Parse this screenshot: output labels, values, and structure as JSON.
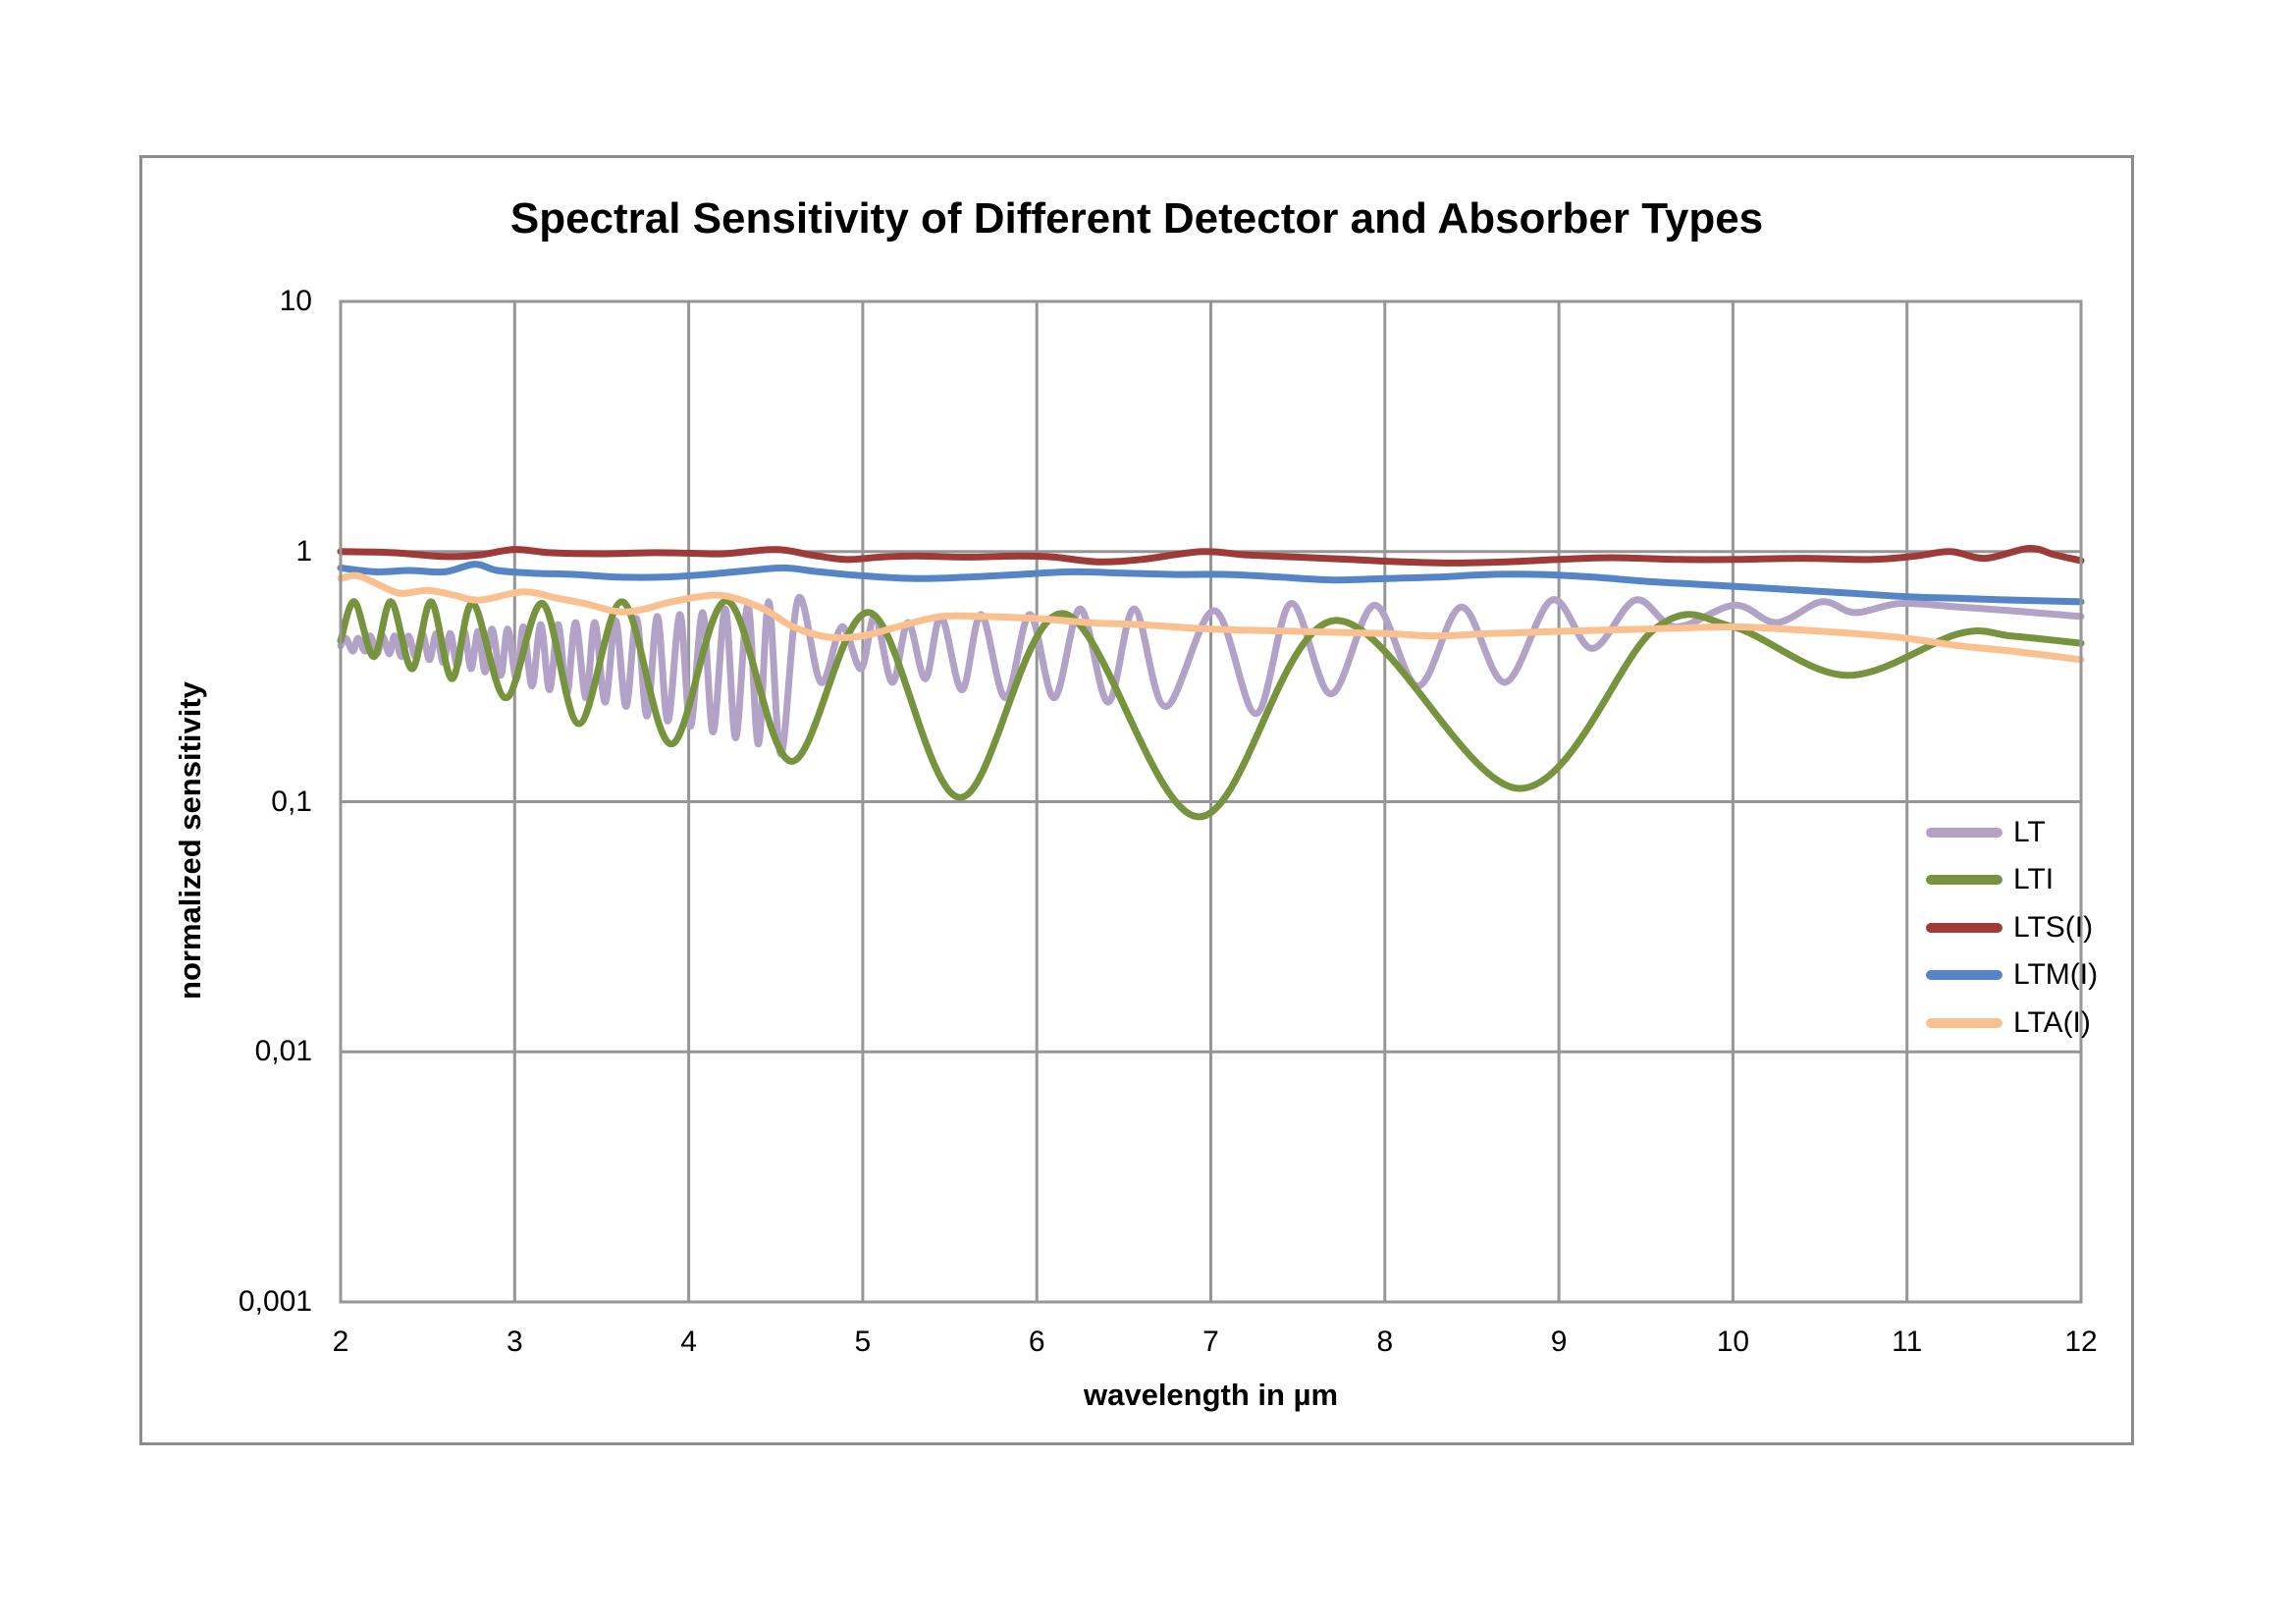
{
  "chart_data": {
    "type": "line",
    "title": "Spectral Sensitivity of Different Detector and Absorber Types",
    "xlabel": "wavelength in µm",
    "ylabel": "normalized sensitivity",
    "x_range": [
      2,
      12
    ],
    "y_scale": "log",
    "y_range": [
      0.001,
      10
    ],
    "grid": true,
    "grid_color": "#969696",
    "border_color": "#8c8c8c",
    "legend_position": "inside-right",
    "x_ticks": [
      {
        "label": "2",
        "value": 2
      },
      {
        "label": "3",
        "value": 3
      },
      {
        "label": "4",
        "value": 4
      },
      {
        "label": "5",
        "value": 5
      },
      {
        "label": "6",
        "value": 6
      },
      {
        "label": "7",
        "value": 7
      },
      {
        "label": "8",
        "value": 8
      },
      {
        "label": "9",
        "value": 9
      },
      {
        "label": "10",
        "value": 10
      },
      {
        "label": "11",
        "value": 11
      },
      {
        "label": "12",
        "value": 12
      }
    ],
    "y_ticks": [
      {
        "label": "10",
        "value": 10
      },
      {
        "label": "1",
        "value": 1
      },
      {
        "label": "0,1",
        "value": 0.1
      },
      {
        "label": "0,01",
        "value": 0.01
      },
      {
        "label": "0,001",
        "value": 0.001
      }
    ],
    "series": [
      {
        "name": "LT",
        "color": "#b3a2c8",
        "points": [
          [
            2.0,
            0.42
          ],
          [
            2.03,
            0.45
          ],
          [
            2.07,
            0.4
          ],
          [
            2.1,
            0.45
          ],
          [
            2.14,
            0.4
          ],
          [
            2.17,
            0.46
          ],
          [
            2.21,
            0.39
          ],
          [
            2.24,
            0.46
          ],
          [
            2.28,
            0.39
          ],
          [
            2.31,
            0.46
          ],
          [
            2.35,
            0.38
          ],
          [
            2.39,
            0.46
          ],
          [
            2.43,
            0.38
          ],
          [
            2.47,
            0.47
          ],
          [
            2.51,
            0.37
          ],
          [
            2.55,
            0.47
          ],
          [
            2.59,
            0.36
          ],
          [
            2.63,
            0.47
          ],
          [
            2.67,
            0.35
          ],
          [
            2.71,
            0.48
          ],
          [
            2.75,
            0.34
          ],
          [
            2.79,
            0.48
          ],
          [
            2.83,
            0.33
          ],
          [
            2.87,
            0.49
          ],
          [
            2.92,
            0.32
          ],
          [
            2.96,
            0.49
          ],
          [
            3.01,
            0.31
          ],
          [
            3.05,
            0.5
          ],
          [
            3.1,
            0.29
          ],
          [
            3.15,
            0.51
          ],
          [
            3.2,
            0.28
          ],
          [
            3.25,
            0.51
          ],
          [
            3.3,
            0.27
          ],
          [
            3.35,
            0.52
          ],
          [
            3.41,
            0.26
          ],
          [
            3.46,
            0.52
          ],
          [
            3.52,
            0.25
          ],
          [
            3.58,
            0.53
          ],
          [
            3.64,
            0.24
          ],
          [
            3.7,
            0.54
          ],
          [
            3.76,
            0.22
          ],
          [
            3.82,
            0.55
          ],
          [
            3.88,
            0.21
          ],
          [
            3.95,
            0.56
          ],
          [
            4.01,
            0.2
          ],
          [
            4.08,
            0.57
          ],
          [
            4.14,
            0.19
          ],
          [
            4.21,
            0.59
          ],
          [
            4.27,
            0.18
          ],
          [
            4.34,
            0.61
          ],
          [
            4.4,
            0.17
          ],
          [
            4.46,
            0.63
          ],
          [
            4.53,
            0.155
          ],
          [
            4.63,
            0.65
          ],
          [
            4.76,
            0.3
          ],
          [
            4.88,
            0.5
          ],
          [
            4.99,
            0.34
          ],
          [
            5.07,
            0.55
          ],
          [
            5.17,
            0.3
          ],
          [
            5.26,
            0.52
          ],
          [
            5.36,
            0.31
          ],
          [
            5.45,
            0.55
          ],
          [
            5.57,
            0.28
          ],
          [
            5.68,
            0.56
          ],
          [
            5.82,
            0.26
          ],
          [
            5.96,
            0.56
          ],
          [
            6.1,
            0.26
          ],
          [
            6.25,
            0.59
          ],
          [
            6.41,
            0.25
          ],
          [
            6.56,
            0.59
          ],
          [
            6.74,
            0.24
          ],
          [
            7.02,
            0.58
          ],
          [
            7.26,
            0.225
          ],
          [
            7.46,
            0.62
          ],
          [
            7.69,
            0.27
          ],
          [
            7.94,
            0.61
          ],
          [
            8.19,
            0.29
          ],
          [
            8.44,
            0.6
          ],
          [
            8.69,
            0.3
          ],
          [
            8.96,
            0.64
          ],
          [
            9.19,
            0.41
          ],
          [
            9.44,
            0.64
          ],
          [
            9.67,
            0.5
          ],
          [
            10.01,
            0.61
          ],
          [
            10.25,
            0.52
          ],
          [
            10.51,
            0.63
          ],
          [
            10.7,
            0.57
          ],
          [
            10.96,
            0.62
          ],
          [
            11.3,
            0.6
          ],
          [
            11.6,
            0.58
          ],
          [
            12.0,
            0.55
          ]
        ]
      },
      {
        "name": "LTI",
        "color": "#78933d",
        "points": [
          [
            2.0,
            0.44
          ],
          [
            2.08,
            0.63
          ],
          [
            2.19,
            0.38
          ],
          [
            2.29,
            0.63
          ],
          [
            2.41,
            0.34
          ],
          [
            2.52,
            0.63
          ],
          [
            2.64,
            0.31
          ],
          [
            2.76,
            0.62
          ],
          [
            2.95,
            0.26
          ],
          [
            3.16,
            0.62
          ],
          [
            3.37,
            0.205
          ],
          [
            3.62,
            0.63
          ],
          [
            3.9,
            0.17
          ],
          [
            4.22,
            0.635
          ],
          [
            4.59,
            0.145
          ],
          [
            5.04,
            0.57
          ],
          [
            5.56,
            0.104
          ],
          [
            6.15,
            0.565
          ],
          [
            6.93,
            0.087
          ],
          [
            7.71,
            0.53
          ],
          [
            8.77,
            0.113
          ],
          [
            9.55,
            0.49
          ],
          [
            10.0,
            0.5
          ],
          [
            10.65,
            0.32
          ],
          [
            11.3,
            0.47
          ],
          [
            11.6,
            0.46
          ],
          [
            12.0,
            0.43
          ]
        ]
      },
      {
        "name": "LTS(I)",
        "color": "#9e3b38",
        "points": [
          [
            2.0,
            1.0
          ],
          [
            2.3,
            0.99
          ],
          [
            2.6,
            0.955
          ],
          [
            2.8,
            0.97
          ],
          [
            3.0,
            1.02
          ],
          [
            3.2,
            0.99
          ],
          [
            3.5,
            0.98
          ],
          [
            3.8,
            0.99
          ],
          [
            4.0,
            0.985
          ],
          [
            4.2,
            0.98
          ],
          [
            4.5,
            1.02
          ],
          [
            4.7,
            0.97
          ],
          [
            4.9,
            0.93
          ],
          [
            5.1,
            0.95
          ],
          [
            5.3,
            0.96
          ],
          [
            5.6,
            0.95
          ],
          [
            5.9,
            0.96
          ],
          [
            6.1,
            0.95
          ],
          [
            6.35,
            0.91
          ],
          [
            6.6,
            0.93
          ],
          [
            6.95,
            1.0
          ],
          [
            7.2,
            0.97
          ],
          [
            7.5,
            0.95
          ],
          [
            7.8,
            0.93
          ],
          [
            8.1,
            0.91
          ],
          [
            8.4,
            0.9
          ],
          [
            8.7,
            0.91
          ],
          [
            9.0,
            0.93
          ],
          [
            9.3,
            0.945
          ],
          [
            9.7,
            0.93
          ],
          [
            10.0,
            0.93
          ],
          [
            10.4,
            0.94
          ],
          [
            10.8,
            0.93
          ],
          [
            11.05,
            0.96
          ],
          [
            11.25,
            1.0
          ],
          [
            11.45,
            0.94
          ],
          [
            11.7,
            1.03
          ],
          [
            11.85,
            0.97
          ],
          [
            12.0,
            0.92
          ]
        ]
      },
      {
        "name": "LTM(I)",
        "color": "#5585c6",
        "points": [
          [
            2.0,
            0.86
          ],
          [
            2.2,
            0.83
          ],
          [
            2.4,
            0.84
          ],
          [
            2.6,
            0.83
          ],
          [
            2.77,
            0.89
          ],
          [
            2.9,
            0.84
          ],
          [
            3.1,
            0.82
          ],
          [
            3.35,
            0.81
          ],
          [
            3.6,
            0.79
          ],
          [
            3.85,
            0.79
          ],
          [
            4.1,
            0.81
          ],
          [
            4.35,
            0.84
          ],
          [
            4.55,
            0.86
          ],
          [
            4.75,
            0.83
          ],
          [
            5.0,
            0.8
          ],
          [
            5.3,
            0.78
          ],
          [
            5.6,
            0.79
          ],
          [
            5.9,
            0.81
          ],
          [
            6.2,
            0.83
          ],
          [
            6.5,
            0.82
          ],
          [
            6.8,
            0.81
          ],
          [
            7.1,
            0.81
          ],
          [
            7.4,
            0.79
          ],
          [
            7.7,
            0.77
          ],
          [
            8.0,
            0.78
          ],
          [
            8.3,
            0.79
          ],
          [
            8.6,
            0.81
          ],
          [
            8.9,
            0.81
          ],
          [
            9.2,
            0.79
          ],
          [
            9.5,
            0.76
          ],
          [
            9.8,
            0.74
          ],
          [
            10.1,
            0.72
          ],
          [
            10.4,
            0.7
          ],
          [
            10.7,
            0.68
          ],
          [
            11.0,
            0.66
          ],
          [
            11.3,
            0.65
          ],
          [
            11.6,
            0.64
          ],
          [
            12.0,
            0.63
          ]
        ]
      },
      {
        "name": "LTA(I)",
        "color": "#fac090",
        "points": [
          [
            2.0,
            0.78
          ],
          [
            2.1,
            0.8
          ],
          [
            2.25,
            0.72
          ],
          [
            2.35,
            0.68
          ],
          [
            2.5,
            0.7
          ],
          [
            2.65,
            0.67
          ],
          [
            2.8,
            0.64
          ],
          [
            3.05,
            0.69
          ],
          [
            3.25,
            0.65
          ],
          [
            3.4,
            0.62
          ],
          [
            3.6,
            0.575
          ],
          [
            3.75,
            0.59
          ],
          [
            3.9,
            0.63
          ],
          [
            4.15,
            0.67
          ],
          [
            4.3,
            0.64
          ],
          [
            4.45,
            0.58
          ],
          [
            4.6,
            0.5
          ],
          [
            4.8,
            0.455
          ],
          [
            5.0,
            0.46
          ],
          [
            5.2,
            0.5
          ],
          [
            5.45,
            0.55
          ],
          [
            5.7,
            0.55
          ],
          [
            6.0,
            0.54
          ],
          [
            6.3,
            0.52
          ],
          [
            6.6,
            0.51
          ],
          [
            7.0,
            0.49
          ],
          [
            7.5,
            0.48
          ],
          [
            8.0,
            0.47
          ],
          [
            8.3,
            0.46
          ],
          [
            8.6,
            0.47
          ],
          [
            9.0,
            0.48
          ],
          [
            9.5,
            0.49
          ],
          [
            10.0,
            0.5
          ],
          [
            10.3,
            0.49
          ],
          [
            10.7,
            0.47
          ],
          [
            11.0,
            0.45
          ],
          [
            11.3,
            0.42
          ],
          [
            11.6,
            0.4
          ],
          [
            12.0,
            0.37
          ]
        ]
      }
    ]
  }
}
